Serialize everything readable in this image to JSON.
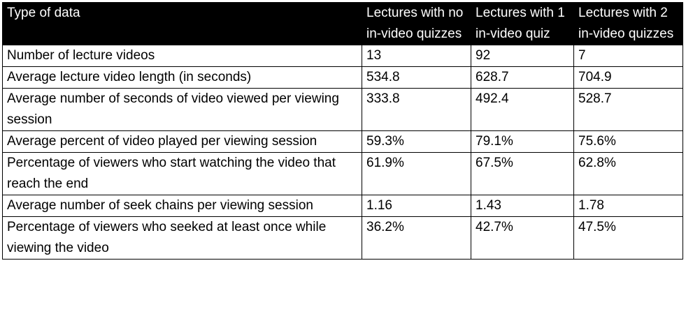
{
  "colors": {
    "header_bg": "#000000",
    "header_text": "#ffffff",
    "border": "#000000"
  },
  "table": {
    "headers": [
      "Type of data",
      "Lectures with no in-video quizzes",
      "Lectures with 1 in-video quiz",
      "Lectures with 2 in-video quizzes"
    ],
    "rows": [
      [
        "Number of lecture videos",
        "13",
        "92",
        "7"
      ],
      [
        "Average lecture video length (in seconds)",
        "534.8",
        "628.7",
        "704.9"
      ],
      [
        "Average number of seconds of video viewed per viewing session",
        "333.8",
        "492.4",
        "528.7"
      ],
      [
        "Average percent of video played per viewing session",
        "59.3%",
        "79.1%",
        "75.6%"
      ],
      [
        "Percentage of viewers who start watching the video that reach the end",
        "61.9%",
        "67.5%",
        "62.8%"
      ],
      [
        "Average number of seek chains per viewing session",
        "1.16",
        "1.43",
        "1.78"
      ],
      [
        "Percentage of viewers who seeked at least once while viewing the video",
        "36.2%",
        "42.7%",
        "47.5%"
      ]
    ]
  }
}
